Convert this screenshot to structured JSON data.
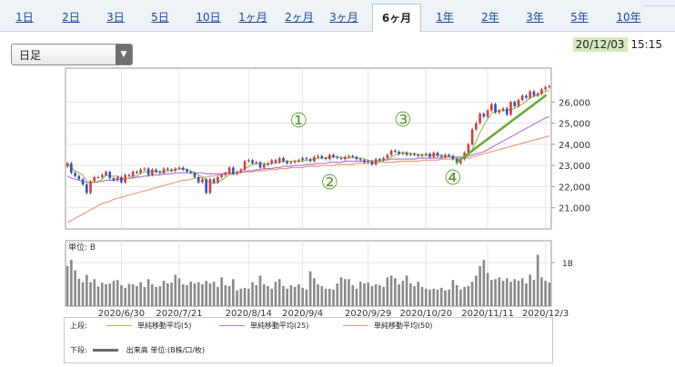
{
  "tabs": [
    {
      "label": "1日",
      "active": false
    },
    {
      "label": "2日",
      "active": false
    },
    {
      "label": "3日",
      "active": false
    },
    {
      "label": "5日",
      "active": false
    },
    {
      "label": "10日",
      "active": false
    },
    {
      "label": "1ヶ月",
      "active": false
    },
    {
      "label": "2ヶ月",
      "active": false
    },
    {
      "label": "3ヶ月",
      "active": false
    },
    {
      "label": "6ヶ月",
      "active": true
    },
    {
      "label": "1年",
      "active": false
    },
    {
      "label": "2年",
      "active": false
    },
    {
      "label": "3年",
      "active": false
    },
    {
      "label": "5年",
      "active": false
    },
    {
      "label": "10年",
      "active": false
    }
  ],
  "period_select": {
    "value": "日足"
  },
  "timestamp": {
    "date": "20/12/03",
    "time": "15:15"
  },
  "colors": {
    "up": "#e03a3a",
    "down": "#2a54c8",
    "ma5": "#9ac25b",
    "ma25": "#b57be0",
    "ma50": "#ef9b7d",
    "volume": "#8a8a8a",
    "annotation": "#5aa032",
    "trend": "#6aab3a",
    "highlight": "#d4e9bd"
  },
  "chart_data": [
    {
      "type": "candlestick",
      "ylim": [
        20000,
        27600
      ],
      "yticks": [
        21000,
        22000,
        23000,
        24000,
        25000,
        26000
      ],
      "ytick_labels": [
        "21,000",
        "22,000",
        "23,000",
        "24,000",
        "25,000",
        "26,000"
      ],
      "xtick_labels": [
        "2020/6/30",
        "2020/7/21",
        "2020/8/14",
        "2020/9/4",
        "2020/9/29",
        "2020/10/20",
        "2020/11/11",
        "2020/12/3"
      ],
      "xtick_days": [
        14,
        29,
        47,
        61,
        78,
        93,
        109,
        124
      ],
      "closes": [
        23100,
        22650,
        22500,
        22350,
        22100,
        21700,
        22250,
        22450,
        22450,
        22550,
        22700,
        22400,
        22300,
        22450,
        22200,
        22550,
        22500,
        22700,
        22650,
        22800,
        22850,
        22550,
        22800,
        22700,
        22650,
        22850,
        22800,
        22750,
        22850,
        22900,
        22800,
        22700,
        22650,
        22450,
        22200,
        22350,
        21700,
        22350,
        22200,
        22450,
        22550,
        22650,
        22900,
        22600,
        22700,
        22800,
        23200,
        23250,
        23100,
        23150,
        22900,
        23050,
        23100,
        23250,
        23150,
        23350,
        23200,
        23100,
        23150,
        23200,
        23250,
        23350,
        23300,
        23200,
        23400,
        23450,
        23350,
        23300,
        23500,
        23400,
        23350,
        23300,
        23400,
        23450,
        23400,
        23300,
        23250,
        23150,
        23200,
        23050,
        23300,
        23250,
        23350,
        23500,
        23700,
        23650,
        23550,
        23600,
        23500,
        23550,
        23500,
        23450,
        23500,
        23550,
        23400,
        23600,
        23450,
        23400,
        23500,
        23450,
        23300,
        23100,
        23300,
        23600,
        24000,
        24700,
        25000,
        25450,
        25300,
        25600,
        25900,
        25500,
        25600,
        25700,
        25400,
        26000,
        25800,
        26100,
        26300,
        26200,
        26500,
        26300,
        26400,
        26600,
        26700,
        26750
      ],
      "ma5": [
        23100,
        22900,
        22750,
        22650,
        22550,
        22250,
        22200,
        22200,
        22200,
        22350,
        22550,
        22500,
        22500,
        22500,
        22400,
        22350,
        22400,
        22500,
        22500,
        22650,
        22700,
        22700,
        22750,
        22700,
        22700,
        22700,
        22750,
        22750,
        22800,
        22850,
        22850,
        22800,
        22750,
        22650,
        22550,
        22450,
        22300,
        22200,
        22150,
        22200,
        22300,
        22450,
        22550,
        22600,
        22650,
        22750,
        22850,
        22950,
        23050,
        23100,
        23100,
        23100,
        23050,
        23100,
        23100,
        23150,
        23200,
        23200,
        23200,
        23200,
        23200,
        23200,
        23250,
        23250,
        23300,
        23350,
        23350,
        23350,
        23400,
        23400,
        23400,
        23400,
        23350,
        23350,
        23400,
        23350,
        23350,
        23300,
        23250,
        23200,
        23200,
        23200,
        23250,
        23300,
        23400,
        23500,
        23550,
        23600,
        23600,
        23550,
        23550,
        23500,
        23500,
        23500,
        23500,
        23500,
        23500,
        23500,
        23450,
        23450,
        23400,
        23350,
        23300,
        23350,
        23450,
        23750,
        24150,
        24550,
        24900,
        25200,
        25450,
        25550,
        25600,
        25600,
        25600,
        25650,
        25700,
        25800,
        25900,
        26050,
        26200,
        26250,
        26350,
        26400,
        26500,
        26550
      ],
      "ma25": [
        22500,
        22400,
        22350,
        22300,
        22250,
        22200,
        22200,
        22200,
        22250,
        22250,
        22300,
        22300,
        22300,
        22350,
        22350,
        22350,
        22400,
        22400,
        22450,
        22450,
        22500,
        22500,
        22550,
        22550,
        22550,
        22600,
        22600,
        22600,
        22650,
        22650,
        22650,
        22650,
        22650,
        22650,
        22650,
        22650,
        22600,
        22600,
        22600,
        22600,
        22600,
        22650,
        22650,
        22650,
        22650,
        22700,
        22700,
        22750,
        22750,
        22800,
        22800,
        22850,
        22850,
        22850,
        22900,
        22900,
        22950,
        22950,
        22950,
        23000,
        23000,
        23000,
        23050,
        23050,
        23050,
        23100,
        23100,
        23100,
        23150,
        23150,
        23150,
        23150,
        23200,
        23200,
        23200,
        23200,
        23200,
        23200,
        23200,
        23200,
        23200,
        23250,
        23250,
        23250,
        23300,
        23300,
        23300,
        23300,
        23300,
        23300,
        23300,
        23350,
        23350,
        23350,
        23350,
        23350,
        23350,
        23350,
        23400,
        23400,
        23400,
        23400,
        23400,
        23400,
        23450,
        23500,
        23550,
        23600,
        23650,
        23750,
        23850,
        23950,
        24050,
        24150,
        24250,
        24350,
        24450,
        24550,
        24650,
        24750,
        24850,
        24950,
        25050,
        25150,
        25250,
        25300
      ],
      "ma50": [
        20300,
        20400,
        20500,
        20600,
        20700,
        20800,
        20900,
        21000,
        21100,
        21200,
        21250,
        21300,
        21400,
        21450,
        21500,
        21550,
        21600,
        21650,
        21700,
        21750,
        21800,
        21850,
        21900,
        21950,
        22000,
        22050,
        22100,
        22150,
        22200,
        22250,
        22300,
        22300,
        22350,
        22400,
        22400,
        22450,
        22450,
        22500,
        22500,
        22550,
        22550,
        22600,
        22600,
        22650,
        22650,
        22650,
        22700,
        22700,
        22700,
        22750,
        22750,
        22750,
        22800,
        22800,
        22800,
        22850,
        22850,
        22850,
        22900,
        22900,
        22900,
        22900,
        22950,
        22950,
        22950,
        22950,
        23000,
        23000,
        23000,
        23000,
        23050,
        23050,
        23050,
        23050,
        23050,
        23100,
        23100,
        23100,
        23100,
        23100,
        23100,
        23150,
        23150,
        23150,
        23150,
        23150,
        23200,
        23200,
        23200,
        23200,
        23200,
        23200,
        23250,
        23250,
        23250,
        23250,
        23250,
        23300,
        23300,
        23300,
        23300,
        23300,
        23350,
        23350,
        23350,
        23400,
        23450,
        23500,
        23550,
        23600,
        23650,
        23700,
        23750,
        23800,
        23850,
        23900,
        23950,
        24000,
        24050,
        24100,
        24150,
        24200,
        24250,
        24300,
        24350,
        24400
      ]
    },
    {
      "type": "bar",
      "unit_label": "単位: B",
      "ytick_labels": [
        "1B"
      ],
      "ylim": [
        0,
        1.5
      ],
      "values": [
        0.92,
        1.06,
        0.82,
        0.63,
        0.55,
        0.72,
        0.55,
        0.62,
        0.45,
        0.54,
        0.5,
        0.52,
        0.58,
        0.6,
        0.48,
        0.42,
        0.51,
        0.5,
        0.46,
        0.55,
        0.44,
        0.62,
        0.5,
        0.44,
        0.46,
        0.58,
        0.52,
        0.54,
        0.72,
        0.64,
        0.5,
        0.48,
        0.56,
        0.52,
        0.55,
        0.5,
        0.58,
        0.52,
        0.56,
        0.44,
        0.66,
        0.48,
        0.46,
        0.62,
        0.36,
        0.4,
        0.42,
        0.4,
        0.55,
        0.48,
        0.7,
        0.5,
        0.46,
        0.4,
        0.56,
        0.62,
        0.46,
        0.4,
        0.48,
        0.44,
        0.5,
        0.42,
        0.38,
        0.8,
        0.64,
        0.5,
        0.46,
        0.4,
        0.4,
        0.38,
        0.52,
        0.66,
        0.62,
        0.62,
        0.48,
        0.4,
        0.56,
        0.52,
        0.54,
        0.46,
        0.5,
        0.48,
        0.44,
        0.66,
        0.7,
        0.64,
        0.5,
        0.58,
        0.7,
        0.52,
        0.46,
        0.56,
        0.44,
        0.4,
        0.38,
        0.4,
        0.38,
        0.42,
        0.36,
        0.38,
        0.6,
        0.48,
        0.38,
        0.44,
        0.46,
        0.56,
        0.7,
        0.92,
        1.06,
        0.76,
        0.6,
        0.62,
        0.66,
        0.58,
        0.64,
        0.56,
        0.62,
        0.58,
        0.64,
        0.52,
        0.72,
        0.6,
        1.18,
        0.66,
        0.58,
        0.54
      ]
    }
  ],
  "annotations": {
    "circled": [
      {
        "label": "①",
        "day": 60,
        "value": 24800
      },
      {
        "label": "②",
        "day": 68,
        "value": 21900
      },
      {
        "label": "③",
        "day": 87,
        "value": 24850
      },
      {
        "label": "④",
        "day": 100,
        "value": 22100
      }
    ],
    "trend_line": {
      "from_day": 101,
      "from_value": 23150,
      "to_day": 124,
      "to_value": 26300
    }
  },
  "legend": {
    "upper_label": "上段:",
    "lower_label": "下段:",
    "items": [
      {
        "key": "ma5",
        "label": "単純移動平均(5)"
      },
      {
        "key": "ma25",
        "label": "単純移動平均(25)"
      },
      {
        "key": "ma50",
        "label": "単純移動平均(50)"
      }
    ],
    "volume_label": "出来高 単位:(B株/口/枚)"
  }
}
